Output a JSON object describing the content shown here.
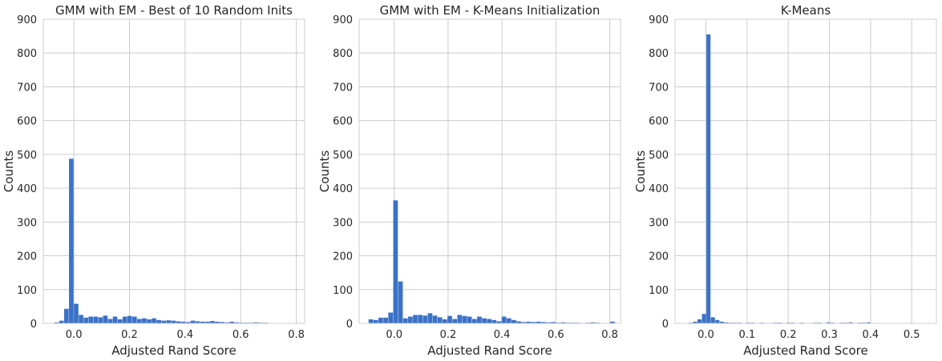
{
  "colors": {
    "bar": "#3a72c8",
    "plot_bg": "#ffffff",
    "grid": "#cccccc",
    "text": "#262626"
  },
  "chart_data": [
    {
      "type": "bar",
      "title": "GMM with EM - Best of 10 Random Inits",
      "xlabel": "Adjusted Rand Score",
      "ylabel": "Counts",
      "xlim": [
        -0.11,
        0.83
      ],
      "ylim": [
        0,
        900
      ],
      "xticks": [
        0.0,
        0.2,
        0.4,
        0.6,
        0.8
      ],
      "xtick_labels": [
        "0.0",
        "0.2",
        "0.4",
        "0.6",
        "0.8"
      ],
      "yticks": [
        0,
        100,
        200,
        300,
        400,
        500,
        600,
        700,
        800,
        900
      ],
      "ytick_labels": [
        "0",
        "100",
        "200",
        "300",
        "400",
        "500",
        "600",
        "700",
        "800",
        "900"
      ],
      "grid": true,
      "bin_start": -0.07,
      "bin_width": 0.0175,
      "values": [
        3,
        8,
        43,
        487,
        58,
        25,
        17,
        20,
        20,
        18,
        23,
        13,
        20,
        12,
        20,
        22,
        20,
        13,
        15,
        12,
        15,
        10,
        8,
        9,
        8,
        6,
        5,
        4,
        8,
        6,
        5,
        5,
        7,
        5,
        4,
        3,
        5,
        3,
        2,
        2,
        2,
        3,
        2,
        2
      ]
    },
    {
      "type": "bar",
      "title": "GMM with EM - K-Means Initialization",
      "xlabel": "Adjusted Rand Score",
      "ylabel": "Counts",
      "xlim": [
        -0.13,
        0.84
      ],
      "ylim": [
        0,
        900
      ],
      "xticks": [
        0.0,
        0.2,
        0.4,
        0.6,
        0.8
      ],
      "xtick_labels": [
        "0.0",
        "0.2",
        "0.4",
        "0.6",
        "0.8"
      ],
      "yticks": [
        0,
        100,
        200,
        300,
        400,
        500,
        600,
        700,
        800,
        900
      ],
      "ytick_labels": [
        "0",
        "100",
        "200",
        "300",
        "400",
        "500",
        "600",
        "700",
        "800",
        "900"
      ],
      "grid": true,
      "bin_start": -0.095,
      "bin_width": 0.0183,
      "values": [
        12,
        10,
        17,
        17,
        32,
        364,
        124,
        15,
        20,
        25,
        25,
        23,
        30,
        23,
        18,
        12,
        22,
        13,
        25,
        22,
        20,
        13,
        20,
        15,
        13,
        10,
        6,
        20,
        15,
        10,
        6,
        4,
        5,
        4,
        5,
        4,
        3,
        4,
        2,
        3,
        2,
        2,
        2,
        1,
        2,
        3,
        2,
        1,
        1,
        5
      ]
    },
    {
      "type": "bar",
      "title": "K-Means",
      "xlabel": "Adjusted Rand Score",
      "ylabel": "Counts",
      "xlim": [
        -0.075,
        0.56
      ],
      "ylim": [
        0,
        900
      ],
      "xticks": [
        0.0,
        0.1,
        0.2,
        0.3,
        0.4,
        0.5
      ],
      "xtick_labels": [
        "0.0",
        "0.1",
        "0.2",
        "0.3",
        "0.4",
        "0.5"
      ],
      "yticks": [
        0,
        100,
        200,
        300,
        400,
        500,
        600,
        700,
        800,
        900
      ],
      "ytick_labels": [
        "0",
        "100",
        "200",
        "300",
        "400",
        "500",
        "600",
        "700",
        "800",
        "900"
      ],
      "grid": true,
      "bin_start": -0.042,
      "bin_width": 0.0108,
      "values": [
        2,
        5,
        12,
        28,
        855,
        18,
        10,
        5,
        3,
        2,
        2,
        2,
        1,
        2,
        2,
        1,
        2,
        1,
        1,
        2,
        2,
        1,
        2,
        2,
        1,
        2,
        1,
        1,
        2,
        2,
        1,
        3,
        2,
        1,
        2,
        2,
        3,
        1,
        2,
        2,
        3
      ]
    }
  ]
}
